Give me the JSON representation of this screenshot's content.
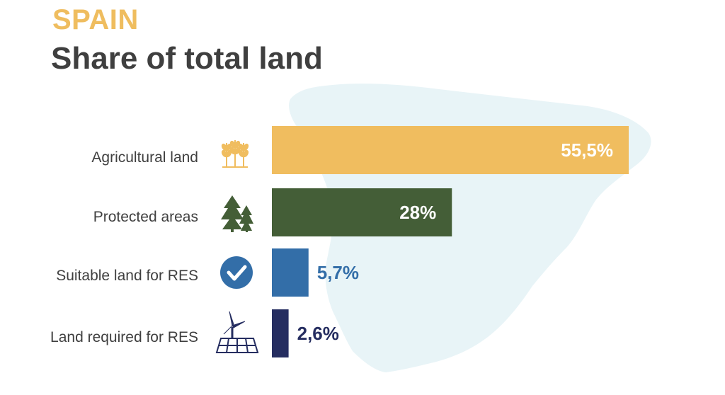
{
  "header": {
    "country": "SPAIN",
    "title": "Share of total land"
  },
  "chart_data": {
    "type": "bar",
    "orientation": "horizontal",
    "title": "Share of total land",
    "categories": [
      "Agricultural land",
      "Protected areas",
      "Suitable land for RES",
      "Land required for RES"
    ],
    "values": [
      55.5,
      28,
      5.7,
      2.6
    ],
    "value_labels": [
      "55,5%",
      "28%",
      "5,7%",
      "2,6%"
    ],
    "unit": "%",
    "icons": [
      "wheat-icon",
      "trees-icon",
      "checkmark-circle-icon",
      "wind-solar-icon"
    ],
    "colors": [
      "#f0bd5f",
      "#445e37",
      "#336ea8",
      "#252d60"
    ],
    "xlim": [
      0,
      55.5
    ],
    "grid": false,
    "legend": "none"
  },
  "colors": {
    "country": "#efbd5f",
    "title": "#3f3f3f",
    "map": "#e8f4f7",
    "label_text": "#3f3f3f"
  }
}
